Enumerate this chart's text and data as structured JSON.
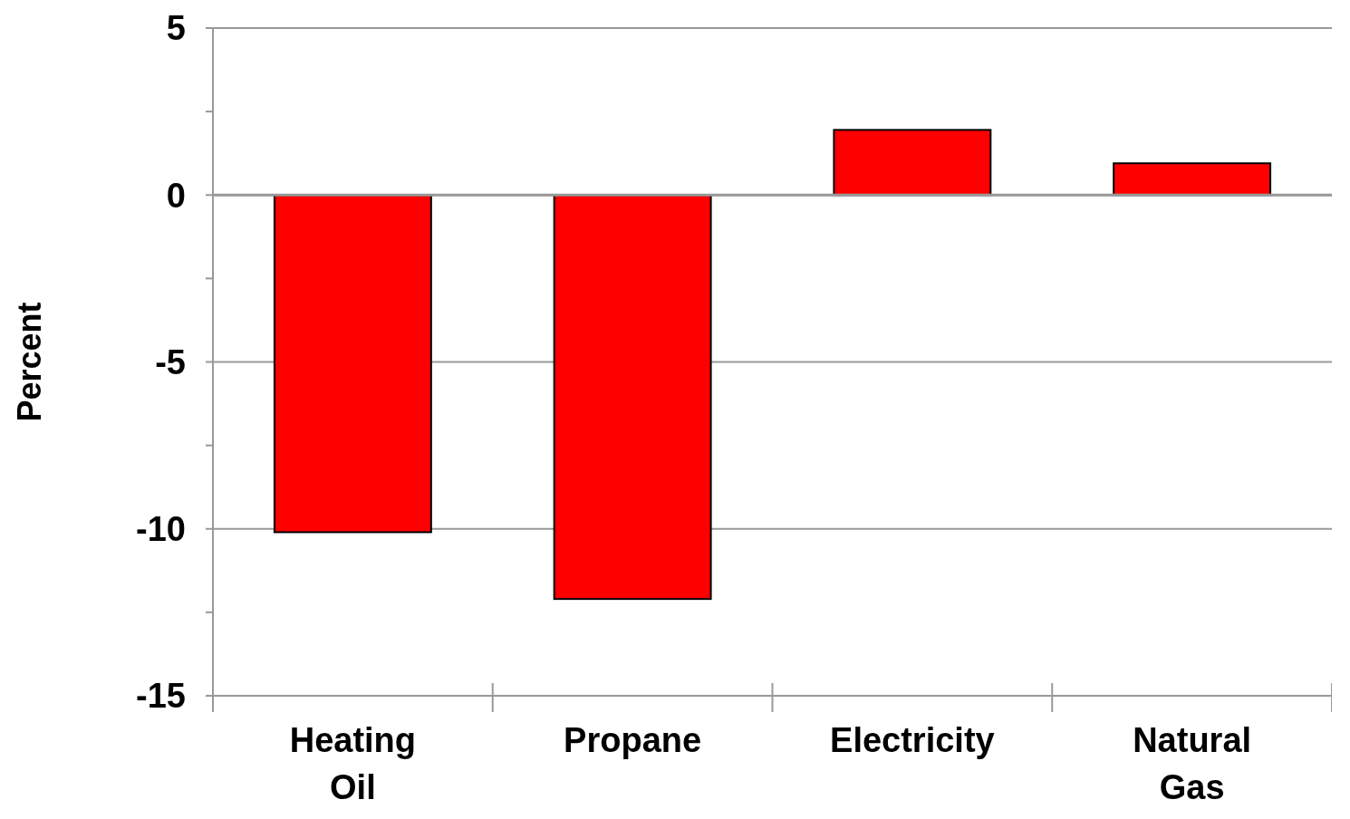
{
  "chart_data": {
    "type": "bar",
    "ylabel": "Percent",
    "categories": [
      "Heating Oil",
      "Propane",
      "Electricity",
      "Natural Gas"
    ],
    "series": [
      {
        "color": "#ff0000",
        "values": [
          -10.1,
          -12.1,
          1.95,
          0.95
        ]
      }
    ],
    "ylim": [
      -15,
      5
    ],
    "yticks": [
      -15,
      {
        "value": -12.5,
        "label": null
      },
      -10,
      {
        "value": -7.5,
        "label": null
      },
      -5,
      {
        "value": -2.5,
        "label": null
      },
      0,
      {
        "value": 2.5,
        "label": null
      },
      5
    ],
    "grid": "y"
  }
}
